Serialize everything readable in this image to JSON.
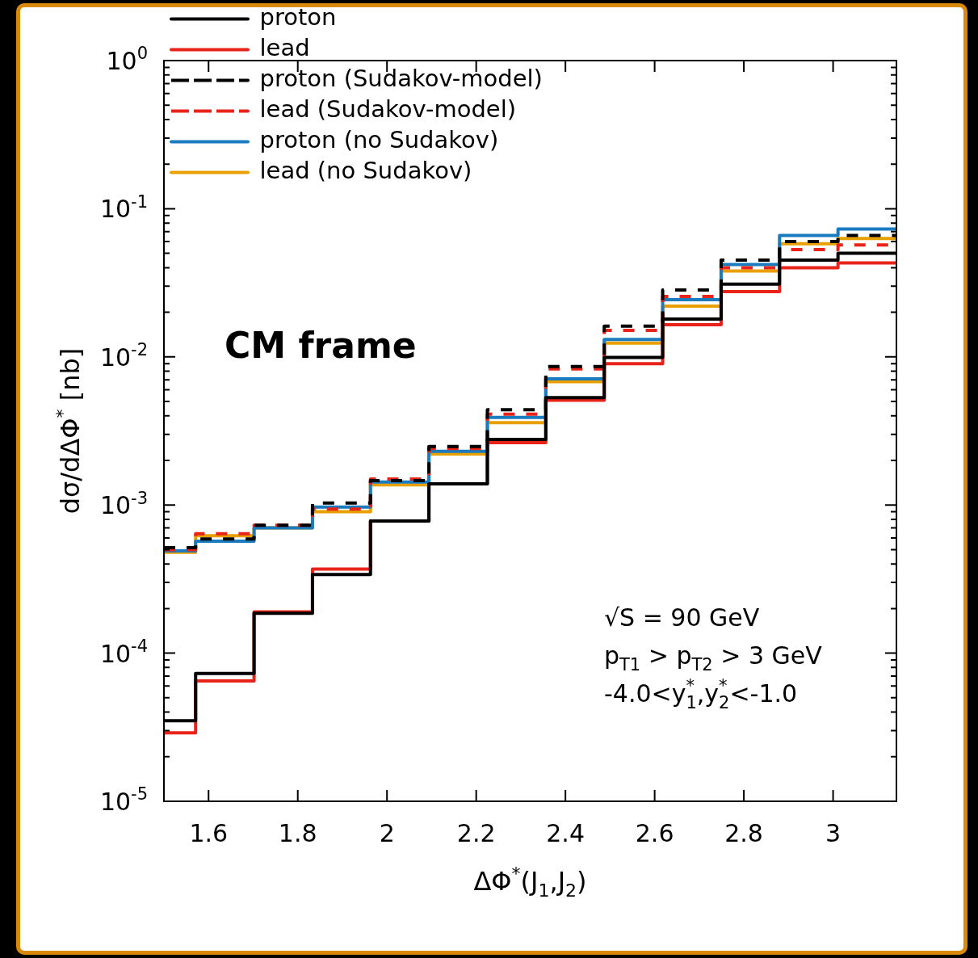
{
  "chart_data": {
    "type": "histogram",
    "xlabel": "ΔΦ$^{*}$(J$_{1}$,J$_{2}$)",
    "ylabel": "dσ/dΔΦ$^{*}$ [nb]",
    "bins": [
      1.5,
      1.571,
      1.702,
      1.833,
      1.963,
      2.094,
      2.225,
      2.356,
      2.487,
      2.618,
      2.749,
      2.88,
      3.011,
      3.142
    ],
    "series": [
      {
        "name": "proton",
        "color": "#000000",
        "values": [
          3.5e-05,
          7.3e-05,
          0.000186,
          0.00034,
          0.00078,
          0.00139,
          0.00277,
          0.0053,
          0.0099,
          0.018,
          0.031,
          0.045,
          0.05
        ]
      },
      {
        "name": "lead",
        "color": "#e8231a",
        "values": [
          2.9e-05,
          6.5e-05,
          0.00019,
          0.00037,
          0.00078,
          0.00139,
          0.00264,
          0.0051,
          0.009,
          0.0165,
          0.0276,
          0.04,
          0.043
        ]
      },
      {
        "name": "proton (Sudakov-model)",
        "color": "#000000",
        "line_style": "dashed",
        "values": [
          0.000515,
          0.00059,
          0.00073,
          0.00103,
          0.00146,
          0.00248,
          0.0044,
          0.0086,
          0.0161,
          0.0283,
          0.045,
          0.06,
          0.066
        ]
      },
      {
        "name": "lead (Sudakov-model)",
        "color": "#e8231a",
        "line_style": "dashed",
        "values": [
          0.0005,
          0.00064,
          0.00073,
          0.00094,
          0.0015,
          0.00241,
          0.0041,
          0.0083,
          0.0151,
          0.0256,
          0.04,
          0.053,
          0.057
        ]
      },
      {
        "name": "proton (no Sudakov)",
        "color": "#1a7bbf",
        "values": [
          0.00049,
          0.00057,
          0.0007,
          0.00097,
          0.00143,
          0.0023,
          0.0039,
          0.0071,
          0.0131,
          0.0243,
          0.042,
          0.066,
          0.073
        ]
      },
      {
        "name": "lead (no Sudakov)",
        "color": "#e8a000",
        "values": [
          0.00048,
          0.00062,
          0.0007,
          0.0009,
          0.00137,
          0.00221,
          0.0036,
          0.0068,
          0.0124,
          0.022,
          0.038,
          0.058,
          0.063
        ]
      }
    ],
    "xlim": [
      1.5,
      3.142
    ],
    "xticks": [
      1.6,
      1.8,
      2,
      2.2,
      2.4,
      2.6,
      2.8,
      3
    ],
    "ylim": [
      1e-05,
      1
    ],
    "yticks": [
      {
        "value": 1e-05,
        "label": "10$^{-5}$"
      },
      {
        "value": 0.0001,
        "label": "10$^{-4}$"
      },
      {
        "value": 0.001,
        "label": "10$^{-3}$"
      },
      {
        "value": 0.01,
        "label": "10$^{-2}$"
      },
      {
        "value": 0.1,
        "label": "10$^{-1}$"
      },
      {
        "value": 1,
        "label": "10$^{0}$"
      }
    ],
    "log": true,
    "legend": "top left",
    "annotations": [
      "CM frame",
      "√S = 90 GeV",
      "p$_{T1}$ > p$_{T2}$ > 3 GeV",
      "-4.0<y$^{*}$$_{1}$,y$^{*}$$_{2}$<-1.0"
    ]
  }
}
